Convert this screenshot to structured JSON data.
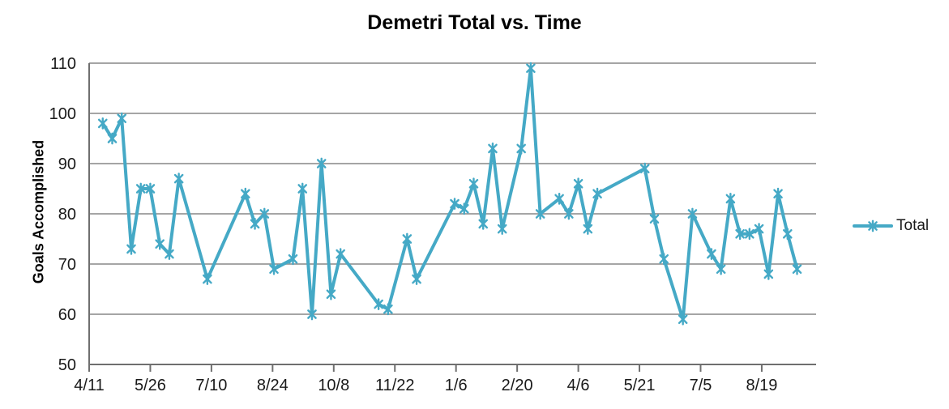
{
  "chart_data": {
    "type": "line",
    "title": "Demetri Total vs. Time",
    "ylabel": "Goals Accomplished",
    "xlabel": "",
    "ylim": [
      50,
      110
    ],
    "yticks": [
      110,
      100,
      90,
      80,
      70,
      60,
      50
    ],
    "x_range_days": [
      0,
      535
    ],
    "xticks": [
      {
        "label": "4/11",
        "day": 0
      },
      {
        "label": "5/26",
        "day": 45
      },
      {
        "label": "7/10",
        "day": 90
      },
      {
        "label": "8/24",
        "day": 135
      },
      {
        "label": "10/8",
        "day": 180
      },
      {
        "label": "11/22",
        "day": 225
      },
      {
        "label": "1/6",
        "day": 270
      },
      {
        "label": "2/20",
        "day": 315
      },
      {
        "label": "4/6",
        "day": 360
      },
      {
        "label": "5/21",
        "day": 405
      },
      {
        "label": "7/5",
        "day": 450
      },
      {
        "label": "8/19",
        "day": 495
      }
    ],
    "grid": "horizontal",
    "legend": {
      "label": "Total",
      "position": "right-middle"
    },
    "series": [
      {
        "name": "Total",
        "marker": "star-6",
        "points": [
          {
            "day": 10,
            "value": 98
          },
          {
            "day": 17,
            "value": 95
          },
          {
            "day": 24,
            "value": 99
          },
          {
            "day": 31,
            "value": 73
          },
          {
            "day": 38,
            "value": 85
          },
          {
            "day": 45,
            "value": 85
          },
          {
            "day": 52,
            "value": 74
          },
          {
            "day": 59,
            "value": 72
          },
          {
            "day": 66,
            "value": 87
          },
          {
            "day": 87,
            "value": 67
          },
          {
            "day": 115,
            "value": 84
          },
          {
            "day": 122,
            "value": 78
          },
          {
            "day": 129,
            "value": 80
          },
          {
            "day": 136,
            "value": 69
          },
          {
            "day": 150,
            "value": 71
          },
          {
            "day": 157,
            "value": 85
          },
          {
            "day": 164,
            "value": 60
          },
          {
            "day": 171,
            "value": 90
          },
          {
            "day": 178,
            "value": 64
          },
          {
            "day": 185,
            "value": 72
          },
          {
            "day": 213,
            "value": 62
          },
          {
            "day": 220,
            "value": 61
          },
          {
            "day": 234,
            "value": 75
          },
          {
            "day": 241,
            "value": 67
          },
          {
            "day": 269,
            "value": 82
          },
          {
            "day": 276,
            "value": 81
          },
          {
            "day": 283,
            "value": 86
          },
          {
            "day": 290,
            "value": 78
          },
          {
            "day": 297,
            "value": 93
          },
          {
            "day": 304,
            "value": 77
          },
          {
            "day": 318,
            "value": 93
          },
          {
            "day": 325,
            "value": 109
          },
          {
            "day": 332,
            "value": 80
          },
          {
            "day": 346,
            "value": 83
          },
          {
            "day": 353,
            "value": 80
          },
          {
            "day": 360,
            "value": 86
          },
          {
            "day": 367,
            "value": 77
          },
          {
            "day": 374,
            "value": 84
          },
          {
            "day": 409,
            "value": 89
          },
          {
            "day": 416,
            "value": 79
          },
          {
            "day": 423,
            "value": 71
          },
          {
            "day": 437,
            "value": 59
          },
          {
            "day": 444,
            "value": 80
          },
          {
            "day": 458,
            "value": 72
          },
          {
            "day": 465,
            "value": 69
          },
          {
            "day": 472,
            "value": 83
          },
          {
            "day": 479,
            "value": 76
          },
          {
            "day": 486,
            "value": 76
          },
          {
            "day": 493,
            "value": 77
          },
          {
            "day": 500,
            "value": 68
          },
          {
            "day": 507,
            "value": 84
          },
          {
            "day": 514,
            "value": 76
          },
          {
            "day": 521,
            "value": 69
          }
        ]
      }
    ]
  },
  "colors": {
    "series_line": "#45a9c6",
    "gridline": "#989898",
    "axis_line": "#6f6f6f",
    "tick_text": "#1a1a1a",
    "title_text": "#000000"
  }
}
